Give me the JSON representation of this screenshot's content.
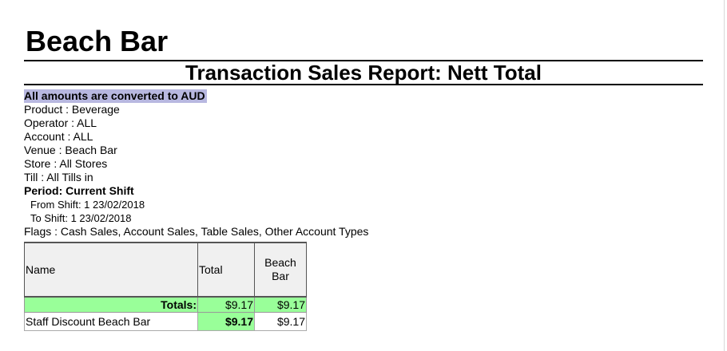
{
  "report": {
    "venue_title": "Beach Bar",
    "title": "Transaction Sales Report: Nett Total",
    "currency_note": "All amounts are converted to AUD",
    "product": "Product : Beverage",
    "operator": "Operator : ALL",
    "account": "Account : ALL",
    "venue": "Venue : Beach Bar",
    "store": "Store :  All Stores",
    "till": "Till :  All Tills in",
    "period": "Period: Current Shift",
    "from_shift": "From Shift: 1 23/02/2018",
    "to_shift": "To Shift: 1 23/02/2018",
    "flags": "Flags :   Cash Sales, Account Sales, Table Sales, Other Account Types"
  },
  "table": {
    "headers": {
      "name": "Name",
      "total": "Total",
      "venue_line1": "Beach",
      "venue_line2": "Bar"
    },
    "totals": {
      "label": "Totals:",
      "total": "$9.17",
      "venue": "$9.17"
    },
    "rows": [
      {
        "name": "Staff Discount Beach Bar",
        "total": "$9.17",
        "venue": "$9.17"
      }
    ]
  },
  "colors": {
    "highlight_green": "#99ff99",
    "currency_note_bg": "#b8b8e0",
    "header_bg": "#f0f0f0"
  }
}
